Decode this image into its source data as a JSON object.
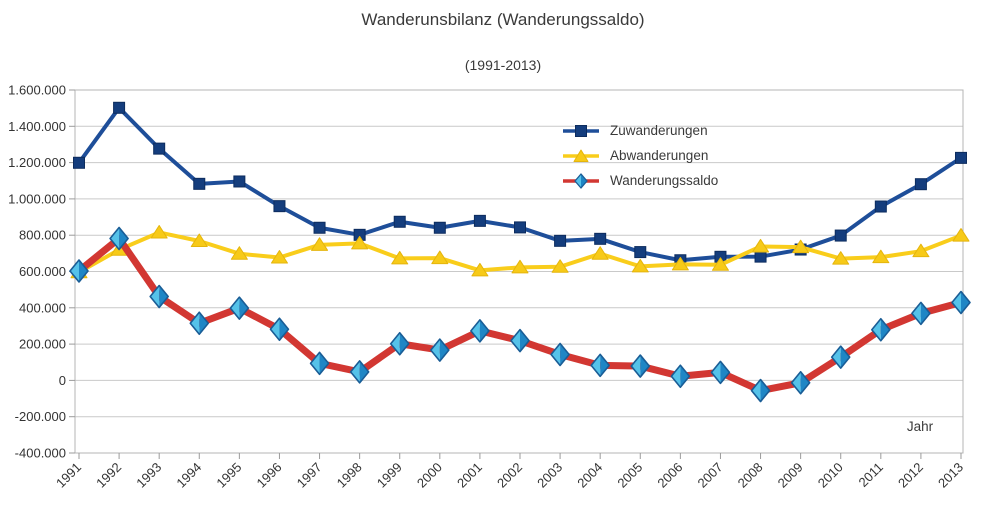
{
  "chart_data": {
    "type": "line",
    "title": "Wanderunsbilanz (Wanderungssaldo)",
    "subtitle": "(1991-2013)",
    "xlabel": "Jahr",
    "categories": [
      "1991",
      "1992",
      "1993",
      "1994",
      "1995",
      "1996",
      "1997",
      "1998",
      "1999",
      "2000",
      "2001",
      "2002",
      "2003",
      "2004",
      "2005",
      "2006",
      "2007",
      "2008",
      "2009",
      "2010",
      "2011",
      "2012",
      "2013"
    ],
    "series": [
      {
        "name": "Zuwanderungen",
        "marker": "square",
        "line_color": "#1e4e99",
        "marker_color": "#143d7d",
        "marker_edge": "#0d2c5e",
        "line_width": 4,
        "values": [
          1199000,
          1502000,
          1277000,
          1083000,
          1096000,
          960000,
          841000,
          802000,
          874000,
          841000,
          879000,
          843000,
          769000,
          780000,
          707000,
          662000,
          681000,
          682000,
          721000,
          798000,
          958000,
          1081000,
          1226000
        ]
      },
      {
        "name": "Abwanderungen",
        "marker": "triangle",
        "line_color": "#f9cd1b",
        "marker_color": "#f7ca18",
        "marker_edge": "#e5b50c",
        "line_width": 4,
        "values": [
          596000,
          720000,
          815000,
          768000,
          698000,
          677000,
          747000,
          755000,
          672000,
          674000,
          606000,
          623000,
          626000,
          698000,
          628000,
          639000,
          637000,
          738000,
          734000,
          671000,
          679000,
          712000,
          798000
        ]
      },
      {
        "name": "Wanderungssaldo",
        "marker": "diamond",
        "line_color": "#d23732",
        "marker_color": "#55c2e9",
        "marker_edge": "#1a5d96",
        "line_width": 7,
        "values": [
          603000,
          782000,
          462000,
          315000,
          398000,
          282000,
          94000,
          47000,
          202000,
          167000,
          273000,
          219000,
          143000,
          83000,
          79000,
          23000,
          44000,
          -56000,
          -13000,
          128000,
          279000,
          369000,
          429000
        ]
      }
    ],
    "ylim": [
      -400000,
      1600000
    ],
    "ytick_step": 200000,
    "ytick_labels": [
      "1.600.000",
      "1.400.000",
      "1.200.000",
      "1.000.000",
      "800.000",
      "600.000",
      "400.000",
      "200.000",
      "0",
      "-200.000",
      "-400.000"
    ],
    "grid": true,
    "legend_position": "inside-top-right",
    "colors": {
      "grid": "#c9c9c9",
      "border": "#b4b4b4",
      "tick": "#9b9b9b",
      "tick_text": "#333333",
      "diamond_light": "#55c2e9",
      "diamond_dark": "#1f86c5",
      "diamond_edge": "#1a5d96"
    }
  }
}
